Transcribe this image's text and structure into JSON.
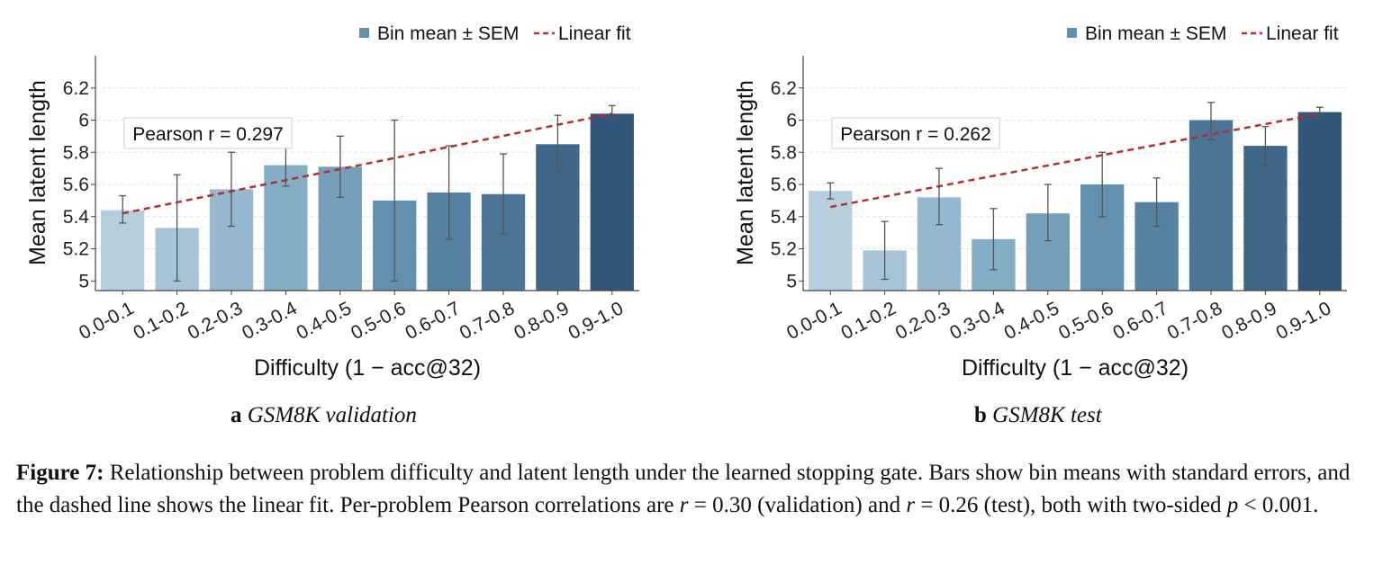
{
  "chart_data": [
    {
      "panel": "a",
      "type": "bar",
      "categories": [
        "0.0-0.1",
        "0.1-0.2",
        "0.2-0.3",
        "0.3-0.4",
        "0.4-0.5",
        "0.5-0.6",
        "0.6-0.7",
        "0.7-0.8",
        "0.8-0.9",
        "0.9-1.0"
      ],
      "values": [
        5.44,
        5.33,
        5.57,
        5.72,
        5.71,
        5.5,
        5.55,
        5.54,
        5.85,
        6.04
      ],
      "err_low": [
        5.36,
        5.0,
        5.34,
        5.59,
        5.52,
        5.0,
        5.26,
        5.29,
        5.68,
        6.0
      ],
      "err_high": [
        5.53,
        5.66,
        5.8,
        5.84,
        5.9,
        6.0,
        5.84,
        5.79,
        6.03,
        6.09
      ],
      "fit_start": 5.42,
      "fit_end": 6.04,
      "bar_colors": [
        "#b7cedd",
        "#a6c3d7",
        "#95b8cf",
        "#84adc6",
        "#739fbb",
        "#6290ae",
        "#5682a1",
        "#4b7495",
        "#406688",
        "#34557a"
      ],
      "fit_color": "#b03030",
      "xlabel": "Difficulty (1 − acc@32)",
      "ylabel": "Mean latent length",
      "ylim": [
        4.94,
        6.4
      ],
      "yticks": [
        "5",
        "5.2",
        "5.4",
        "5.6",
        "5.8",
        "6",
        "6.2"
      ],
      "legend": {
        "bar": "Bin mean ± SEM",
        "line": "Linear fit",
        "position": "top-right"
      },
      "annotation": "Pearson r = 0.297",
      "grid": "horizontal dashed"
    },
    {
      "panel": "b",
      "type": "bar",
      "categories": [
        "0.0-0.1",
        "0.1-0.2",
        "0.2-0.3",
        "0.3-0.4",
        "0.4-0.5",
        "0.5-0.6",
        "0.6-0.7",
        "0.7-0.8",
        "0.8-0.9",
        "0.9-1.0"
      ],
      "values": [
        5.56,
        5.19,
        5.52,
        5.26,
        5.42,
        5.6,
        5.49,
        6.0,
        5.84,
        6.05
      ],
      "err_low": [
        5.51,
        5.01,
        5.35,
        5.07,
        5.25,
        5.4,
        5.34,
        5.88,
        5.72,
        6.01
      ],
      "err_high": [
        5.61,
        5.37,
        5.7,
        5.45,
        5.6,
        5.8,
        5.64,
        6.11,
        5.96,
        6.08
      ],
      "fit_start": 5.46,
      "fit_end": 6.04,
      "bar_colors": [
        "#b7cedd",
        "#a6c3d7",
        "#95b8cf",
        "#84adc6",
        "#739fbb",
        "#6290ae",
        "#5682a1",
        "#4b7495",
        "#406688",
        "#34557a"
      ],
      "fit_color": "#b03030",
      "xlabel": "Difficulty (1 − acc@32)",
      "ylabel": "Mean latent length",
      "ylim": [
        4.94,
        6.4
      ],
      "yticks": [
        "5",
        "5.2",
        "5.4",
        "5.6",
        "5.8",
        "6",
        "6.2"
      ],
      "legend": {
        "bar": "Bin mean ± SEM",
        "line": "Linear fit",
        "position": "top-right"
      },
      "annotation": "Pearson r = 0.262",
      "grid": "horizontal dashed"
    }
  ],
  "panels": {
    "a": {
      "letter": "a",
      "title": "GSM8K validation"
    },
    "b": {
      "letter": "b",
      "title": "GSM8K test"
    }
  },
  "caption": {
    "label": "Figure 7:",
    "t1": " Relationship between problem difficulty and latent length under the learned stopping gate. Bars show bin means with standard errors, and the dashed line shows the linear fit. Per-problem Pearson correlations are ",
    "r_sym1": "r",
    "t2": " = 0.30 (validation) and ",
    "r_sym2": "r",
    "t3": " = 0.26 (test), both with two-sided ",
    "p_sym": "p",
    "t4": " < 0.001."
  }
}
